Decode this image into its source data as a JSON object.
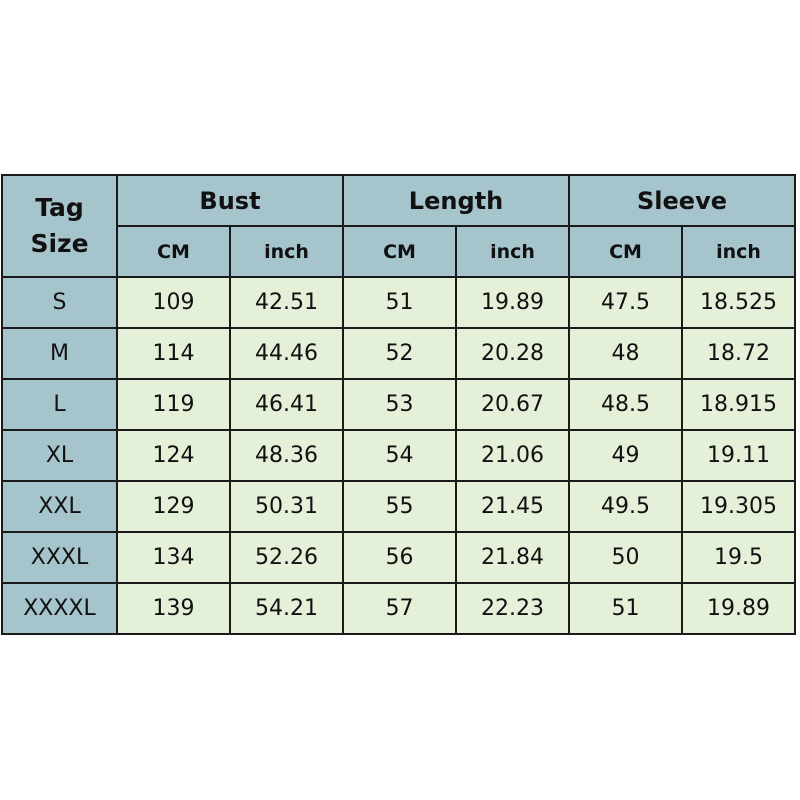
{
  "table": {
    "corner_label": [
      "Tag",
      "Size"
    ],
    "groups": [
      "Bust",
      "Length",
      "Sleeve"
    ],
    "units": [
      "CM",
      "inch",
      "CM",
      "inch",
      "CM",
      "inch"
    ],
    "rows": [
      {
        "size": "S",
        "values": [
          "109",
          "42.51",
          "51",
          "19.89",
          "47.5",
          "18.525"
        ]
      },
      {
        "size": "M",
        "values": [
          "114",
          "44.46",
          "52",
          "20.28",
          "48",
          "18.72"
        ]
      },
      {
        "size": "L",
        "values": [
          "119",
          "46.41",
          "53",
          "20.67",
          "48.5",
          "18.915"
        ]
      },
      {
        "size": "XL",
        "values": [
          "124",
          "48.36",
          "54",
          "21.06",
          "49",
          "19.11"
        ]
      },
      {
        "size": "XXL",
        "values": [
          "129",
          "50.31",
          "55",
          "21.45",
          "49.5",
          "19.305"
        ]
      },
      {
        "size": "XXXL",
        "values": [
          "134",
          "52.26",
          "56",
          "21.84",
          "50",
          "19.5"
        ]
      },
      {
        "size": "XXXXL",
        "values": [
          "139",
          "54.21",
          "57",
          "22.23",
          "51",
          "19.89"
        ]
      }
    ],
    "colors": {
      "header": "#a6c4cb",
      "cell": "#e5f0d9",
      "border": "#1a1a1a"
    }
  }
}
